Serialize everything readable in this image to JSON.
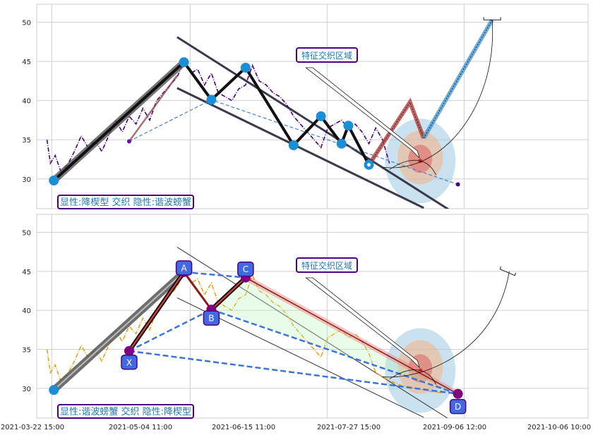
{
  "chart_data": [
    {
      "type": "line",
      "title": "",
      "ylim": [
        26.2,
        52.3
      ],
      "yticks": [
        30,
        35,
        40,
        45,
        50
      ],
      "x_labels": [
        "2021-03-22 15:00",
        "2021-05-04 11:00",
        "2021-06-15 11:00",
        "2021-07-27 15:00",
        "2021-09-06 12:00",
        "2021-10-06 10:00"
      ],
      "price_color": "#4b0082",
      "price_series": [
        [
          0,
          35
        ],
        [
          0.5,
          32
        ],
        [
          1.2,
          33
        ],
        [
          2,
          31
        ],
        [
          3,
          31.8
        ],
        [
          4,
          33.5
        ],
        [
          5,
          35.5
        ],
        [
          6,
          34
        ],
        [
          7,
          35
        ],
        [
          8,
          33.5
        ],
        [
          9,
          35.5
        ],
        [
          10,
          37.5
        ],
        [
          11,
          36
        ],
        [
          12,
          38
        ],
        [
          13,
          37
        ],
        [
          14,
          39
        ],
        [
          15,
          37.5
        ],
        [
          16,
          40
        ],
        [
          17,
          41
        ],
        [
          18,
          42
        ],
        [
          19,
          43
        ],
        [
          20,
          45
        ],
        [
          21,
          43.5
        ],
        [
          22,
          44
        ],
        [
          23,
          42
        ],
        [
          24,
          43.5
        ],
        [
          25,
          41
        ],
        [
          26,
          40.5
        ],
        [
          27,
          40
        ],
        [
          28,
          41.5
        ],
        [
          29,
          42
        ],
        [
          30,
          44.5
        ],
        [
          31,
          42.5
        ],
        [
          32,
          42
        ],
        [
          33,
          41
        ],
        [
          34,
          40.5
        ],
        [
          35,
          39.5
        ],
        [
          36,
          38
        ],
        [
          37,
          37
        ],
        [
          38,
          36
        ],
        [
          39,
          35
        ],
        [
          40,
          34
        ],
        [
          41,
          36.5
        ],
        [
          42,
          37
        ],
        [
          43,
          37.5
        ],
        [
          44,
          36.5
        ],
        [
          45,
          37
        ],
        [
          46,
          36
        ],
        [
          47,
          34.5
        ],
        [
          48,
          36.5
        ],
        [
          49,
          35
        ],
        [
          50,
          32
        ]
      ],
      "zigzag": [
        [
          1,
          29.8
        ],
        [
          20,
          44.9
        ],
        [
          24,
          40.1
        ],
        [
          29,
          44.2
        ],
        [
          36,
          34.3
        ],
        [
          40,
          38
        ],
        [
          43,
          34.5
        ],
        [
          44,
          36.8
        ],
        [
          47,
          31.8
        ]
      ],
      "small_segment": [
        [
          12,
          34.8
        ],
        [
          19,
          43.2
        ]
      ],
      "projection": [
        [
          47,
          31.8
        ],
        [
          53,
          39.8
        ],
        [
          55,
          35.2
        ],
        [
          65,
          50.3
        ]
      ],
      "upper_line": [
        [
          19,
          48.1
        ],
        [
          59,
          25.9
        ]
      ],
      "lower_line": [
        [
          19,
          41.6
        ],
        [
          55,
          26.3
        ]
      ],
      "dashed_line": [
        [
          12,
          34.8
        ],
        [
          24,
          40.1
        ],
        [
          60,
          29.3
        ]
      ],
      "target": {
        "x": 54.5,
        "y": 32.3
      },
      "callout": "特征交织区域",
      "label": "显性:降楔型 交织 隐性:谐波螃蟹"
    },
    {
      "type": "line",
      "title": "",
      "ylim": [
        26.2,
        52.3
      ],
      "yticks": [
        30,
        35,
        40,
        45,
        50
      ],
      "x_labels": [
        "2021-03-22 15:00",
        "2021-05-04 11:00",
        "2021-06-15 11:00",
        "2021-07-27 15:00",
        "2021-09-06 12:00",
        "2021-10-06 10:00"
      ],
      "price_color": "#e8a317",
      "price_series": [
        [
          0,
          35
        ],
        [
          0.5,
          32
        ],
        [
          1.2,
          33
        ],
        [
          2,
          31
        ],
        [
          3,
          31.8
        ],
        [
          4,
          33.5
        ],
        [
          5,
          35.5
        ],
        [
          6,
          34
        ],
        [
          7,
          35
        ],
        [
          8,
          33.5
        ],
        [
          9,
          35.5
        ],
        [
          10,
          37.5
        ],
        [
          11,
          36
        ],
        [
          12,
          38
        ],
        [
          13,
          37
        ],
        [
          14,
          39
        ],
        [
          15,
          37.5
        ],
        [
          16,
          40
        ],
        [
          17,
          41
        ],
        [
          18,
          42
        ],
        [
          19,
          43
        ],
        [
          20,
          45
        ],
        [
          21,
          43.5
        ],
        [
          22,
          44
        ],
        [
          23,
          42
        ],
        [
          24,
          43.5
        ],
        [
          25,
          41
        ],
        [
          26,
          40.5
        ],
        [
          27,
          40
        ],
        [
          28,
          41.5
        ],
        [
          29,
          42
        ],
        [
          30,
          44.5
        ],
        [
          31,
          42.5
        ],
        [
          32,
          42
        ],
        [
          33,
          41
        ],
        [
          34,
          40.5
        ],
        [
          35,
          39.5
        ],
        [
          36,
          38
        ],
        [
          37,
          37
        ],
        [
          38,
          36
        ],
        [
          39,
          35
        ],
        [
          40,
          34
        ],
        [
          41,
          36.5
        ],
        [
          42,
          37
        ],
        [
          43,
          37.5
        ],
        [
          44,
          36.5
        ],
        [
          45,
          37
        ],
        [
          46,
          36
        ],
        [
          47,
          34.5
        ],
        [
          48,
          32
        ],
        [
          50,
          31
        ],
        [
          52,
          30.3
        ],
        [
          54,
          30
        ],
        [
          56,
          29.6
        ],
        [
          58,
          29.4
        ]
      ],
      "harmonic": {
        "X": [
          12,
          34.8
        ],
        "A": [
          20,
          44.9
        ],
        "B": [
          24,
          40.1
        ],
        "C": [
          29,
          44.2
        ],
        "D": [
          60,
          29.3
        ],
        "labels": [
          "X",
          "A",
          "B",
          "C",
          "D"
        ]
      },
      "start_point": [
        1,
        29.8
      ],
      "upper_line": [
        [
          19,
          48.1
        ],
        [
          59,
          25.9
        ]
      ],
      "lower_line": [
        [
          19,
          41.6
        ],
        [
          55,
          26.3
        ]
      ],
      "target": {
        "x": 54.5,
        "y": 32.3
      },
      "callout": "特征交织区域",
      "label": "显性:谐波螃蟹 交织 隐性:降楔型"
    }
  ]
}
